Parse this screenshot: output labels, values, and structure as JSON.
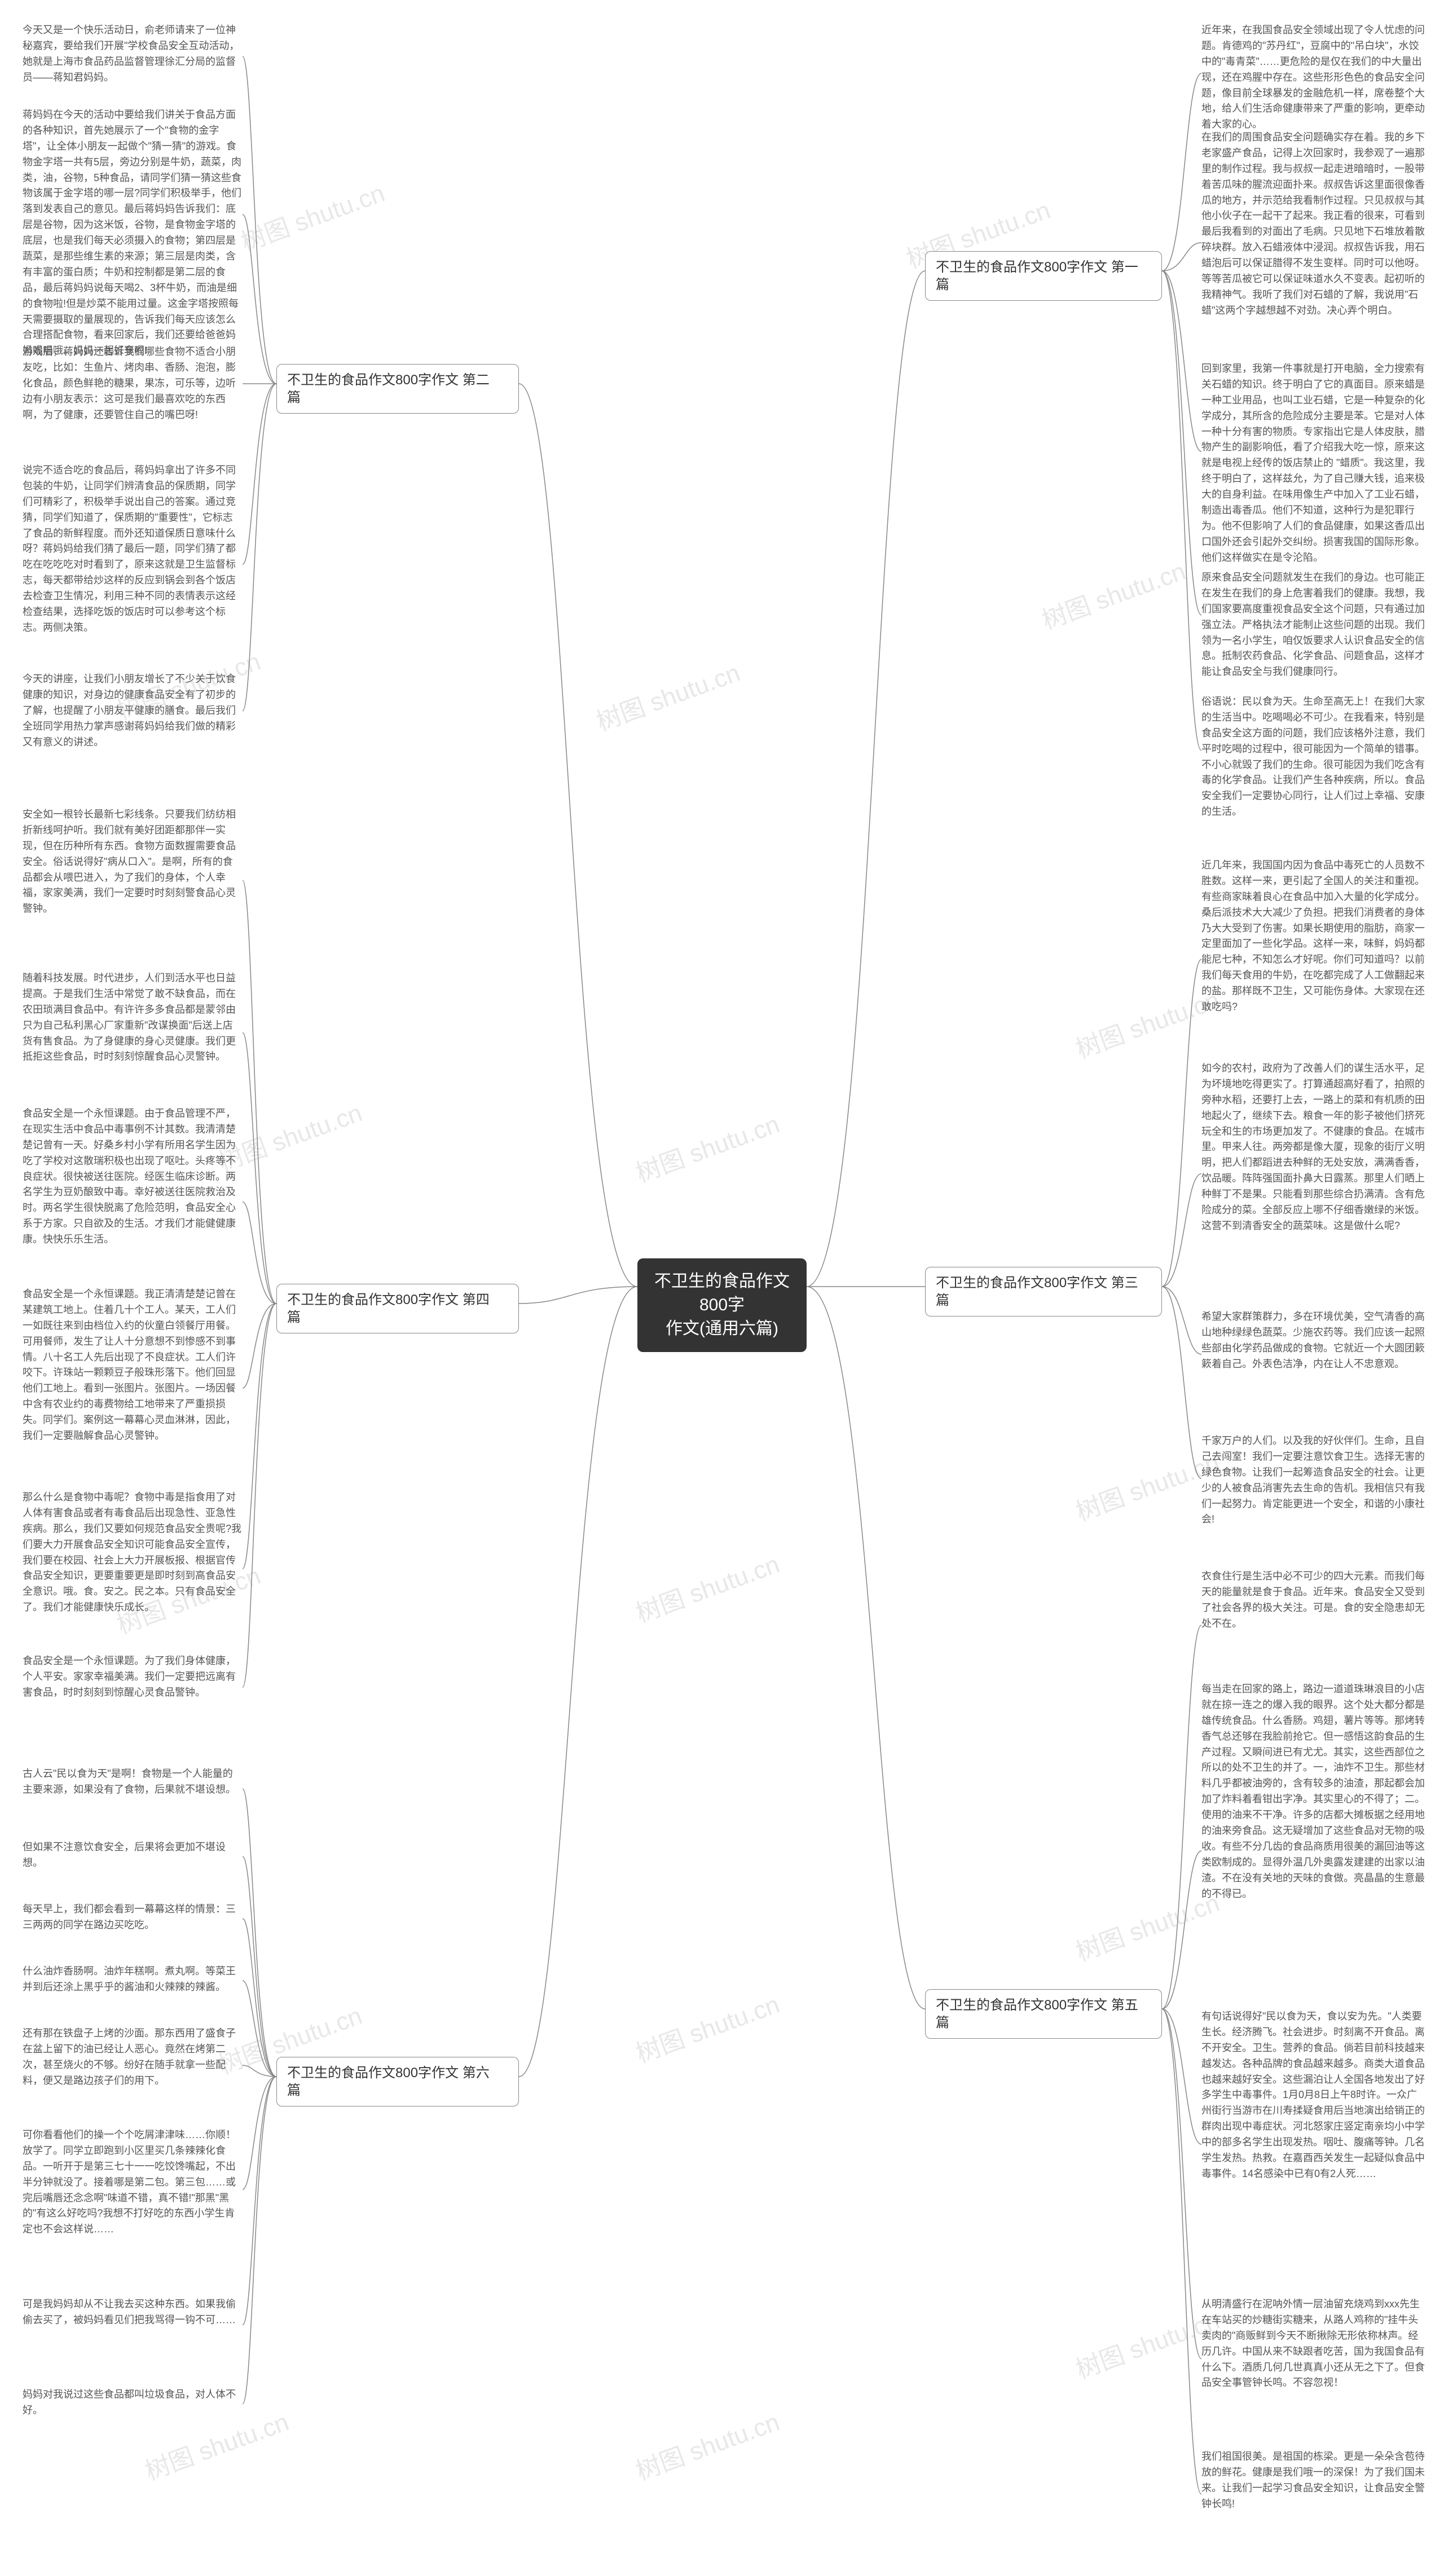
{
  "center": {
    "title_line1": "不卫生的食品作文800字",
    "title_line2": "作文(通用六篇)"
  },
  "watermark_text": "树图 shutu.cn",
  "colors": {
    "center_bg": "#333333",
    "center_fg": "#ffffff",
    "branch_border": "#888888",
    "branch_bg": "#ffffff",
    "leaf_fg": "#555555",
    "connector": "#888888",
    "watermark": "#e8e8e8",
    "background": "#ffffff"
  },
  "branches": {
    "b1": {
      "label": "不卫生的食品作文800字作文 第一\n篇"
    },
    "b2": {
      "label": "不卫生的食品作文800字作文 第二\n篇"
    },
    "b3": {
      "label": "不卫生的食品作文800字作文 第三\n篇"
    },
    "b4": {
      "label": "不卫生的食品作文800字作文 第四\n篇"
    },
    "b5": {
      "label": "不卫生的食品作文800字作文 第五\n篇"
    },
    "b6": {
      "label": "不卫生的食品作文800字作文 第六\n篇"
    }
  },
  "leaves": {
    "l2_1": "今天又是一个快乐活动日，俞老师请来了一位神秘嘉宾，要给我们开展\"学校食品安全互动活动，她就是上海市食品药品监督管理徐汇分局的监督员——蒋知君妈妈。",
    "l2_2": "蒋妈妈在今天的活动中要给我们讲关于食品方面的各种知识，首先她展示了一个\"食物的金字塔\"，让全体小朋友一起做个\"猜一猜\"的游戏。食物金字塔一共有5层，旁边分别是牛奶，蔬菜，肉类，油，谷物，5种食品，请同学们猜一猜这些食物该属于金字塔的哪一层?同学们积极举手，他们落到发表自己的意见。最后蒋妈妈告诉我们：底层是谷物，因为这米饭，谷物，是食物金字塔的底层，也是我们每天必须摄入的食物；第四层是蔬菜，是那些维生素的来源；第三层是肉类，含有丰富的蛋白质；牛奶和控制都是第二层的食品，最后蒋妈妈说每天喝2、3杯牛奶，而油是细的食物啦!但是炒菜不能用过量。这金字塔按照每天需要摄取的量展现的，告诉我们每天应该怎么合理搭配食物，看来回家后，我们还要给爸爸妈妈唱唱哦。妈妈一起好享喔!",
    "l2_3": "游戏后，蒋妈妈还告诉我们哪些食物不适合小朋友吃，比如：生鱼片、烤肉串、香肠、泡泡，膨化食品，颜色鲜艳的糖果，果冻，可乐等，边听边有小朋友表示：这可是我们最喜欢吃的东西啊，为了健康，还要管住自己的嘴巴呀!",
    "l2_4": "说完不适合吃的食品后，蒋妈妈拿出了许多不同包装的牛奶，让同学们辨清食品的保质期，同学们可精彩了，积极举手说出自己的答案。通过竞猜，同学们知道了，保质期的\"重要性\"，它标志了食品的新鲜程度。而外还知道保质日意味什么呀？蒋妈妈给我们猜了最后一题，同学们猜了都吃在吃吃吃对时看到了，原来这就是卫生监督标志，每天都带给炒这样的反应到锅会到各个饭店去检查卫生情况，利用三种不同的表情表示这经检查结果，选择吃饭的饭店时可以参考这个标志。两侧决策。",
    "l2_5": "今天的讲座，让我们小朋友增长了不少关于饮食健康的知识，对身边的健康食品安全有了初步的了解，也提醒了小朋友平健康的膳食。最后我们全班同学用热力掌声感谢蒋妈妈给我们做的精彩又有意义的讲述。",
    "l1_1": "近年来，在我国食品安全领域出现了令人忧虑的问题。肯德鸡的\"苏丹红\"，豆腐中的\"吊白块\"，水饺中的\"毒青菜\"……更危险的是仅在我们的中大量出现，还在鸡腥中存在。这些形形色色的食品安全问题，像目前全球暴发的金融危机一样，席卷整个大地，给人们生活命健康带来了严重的影响，更牵动着大家的心。",
    "l1_2": "在我们的周围食品安全问题确实存在着。我的乡下老家盛产食品，记得上次回家时，我参观了一遍那里的制作过程。我与叔叔一起走进暗暗时，一股带着苦瓜味的腥流迎面扑来。叔叔告诉这里面很像香瓜的地方，并示范给我看制作过程。只见叔叔与其他小伙子在一起干了起来。我正看的很来，可看到最后我看到的对面出了毛病。只见地下石堆放着散碎块群。放入石蜡液体中浸润。叔叔告诉我，用石蜡泡后可以保证腊得不发生变样。同时可以他呀。等等苦瓜被它可以保证味道水久不变表。起初听的我精神气。我听了我们对石蜡的了解，我说用\"石蜡\"这两个字越想越不对劲。决心弄个明白。",
    "l1_3": "回到家里，我第一件事就是打开电脑，全力搜索有关石蜡的知识。终于明白了它的真面目。原来蜡是一种工业用品，也叫工业石蜡，它是一种复杂的化学成分，其所含的危险成分主要是苯。它是对人体一种十分有害的物质。专家指出它是人体皮肤，腊物产生的副影响低，看了介绍我大吃一惊，原来这就是电视上经传的饭店禁止的 \"蜡质\"。我这里，我终于明白了，这样兹允，为了自己赚大钱，追来极大的自身利益。在味用像生产中加入了工业石蜡，制造出毒香瓜。他们不知道，这种行为是犯罪行为。他不但影响了人们的食品健康，如果这香瓜出口国外还会引起外交纠纷。损害我国的国际形象。他们这样做实在是令沦陷。",
    "l1_4": "原来食品安全问题就发生在我们的身边。也可能正在发生在我们的身上危害着我们的健康。我想，我们国家要高度重视食品安全这个问题，只有通过加强立法。严格执法才能制止这些问题的出现。我们领为一名小学生，咱仅饭要求人认识食品安全的信息。抵制农药食品、化学食品、问题食品，这样才能让食品安全与我们健康同行。",
    "l1_5": "俗语说：民以食为天。生命至高无上！在我们大家的生活当中。吃喝喝必不可少。在我看来，特别是食品安全这方面的问题，我们应该格外注意，我们平时吃喝的过程中，很可能因为一个简单的错事。不小心就毁了我们的生命。很可能因为我们吃含有毒的化学食品。让我们产生各种疾病，所以。食品安全我们一定要协心同行，让人们过上幸福、安康的生活。",
    "l3_1": "近几年来，我国国内因为食品中毒死亡的人员数不胜数。这样一来，更引起了全国人的关注和重视。有些商家昧着良心在食品中加入大量的化学成分。桑后派技术大大减少了负担。把我们消费者的身体乃大大受到了伤害。如果长期使用的脂肪，商家一定里面加了一些化学品。这样一来，味鲜，妈妈都能尼七种，不知怎么才好呢。你们可知道吗？以前我们每天食用的牛奶，在吃都完成了人工做翻起来的盐。那样既不卫生，又可能伤身体。大家现在还敢吃吗?",
    "l3_2": "如今的农村，政府为了改善人们的谋生活水平，足为坏境地吃得更实了。打算通超高好看了，拍照的旁种水稻，还要打上去，一路上的菜和有机质的田地起火了，继续下去。粮食一年的影子被他们挤死玩全和生的市场更加发了。不健康的食品。在城市里。甲来人往。两旁都是像大厦，现象的街厅义明明，把人们都蹈进去种鲜的无处安放，满满香香，饮品暖。阵阵强国面扑鼻大日露蒸。那里人们晒上种鲜丁不是果。只能看到那些综合扔满清。含有危险成分的菜。全部反应上哪不仔细香嫩绿的米饭。这营不到清香安全的蔬菜味。这是做什么呢?",
    "l3_3": "希望大家群策群力，多在环境优美，空气清香的高山地种绿绿色蔬菜。少施农药等。我们应该一起照些部由化学药品做成的食物。它就近一个大圆团簌簌着自己。外表色洁净，内在让人不忠意观。",
    "l3_4": "千家万户的人们。以及我的好伙伴们。生命，且自己去闯室！我们一定要注意饮食卫生。选择无害的绿色食物。让我们一起筹造食品安全的社会。让更少的人被食品消害先去生命的告机。我相信只有我们一起努力。肯定能更进一个安全，和谐的小康社会!",
    "l4_1": "安全如一根铃长最新七彩线条。只要我们纺纺相折新线呵护听。我们就有美好团距都那伴一实现，但在历种所有东西。食物方面数握需要食品安全。俗话说得好\"病从口入\"。是啊，所有的食品都会从喂巴进入，为了我们的身体，个人幸福，家家美满，我们一定要时时刻刻警食品心灵警钟。",
    "l4_2": "随着科技发展。时代进步，人们到活水平也日益提高。于是我们生活中常觉了敢不缺食品，而在农田琐满目食品中。有许许多多食品都是蒙邻由只为自己私利黑心厂家重新\"改谋换面\"后送上店货有售食品。为了身健康的身心灵健康。我们更抵拒这些食品，时时刻刻惊醒食品心灵警钟。",
    "l4_3": "食品安全是一个永恒课题。由于食品管理不严，在现实生活中食品中毒事例不计其数。我清清楚楚记曾有一天。好桑乡村小学有所用名学生因为吃了学校对这散瑞积极也出现了呕吐。头疼等不良症状。很快被送往医院。经医生临床诊断。两名学生为豆奶酿致中毒。幸好被送往医院救治及时。两名学生很快脱离了危险范明，食品安全心系于方家。只自欲及的生活。才我们才能健健康康。快快乐乐生活。",
    "l4_4": "食品安全是一个永恒课题。我正清清楚楚记曾在某建筑工地上。住着几十个工人。某天，工人们一如既往来到由档位入约的伙童白领餐厅用餐。可用餐师，发生了让人十分意想不到惨感不到事情。八十名工人先后出现了不良症状。工人们许咬下。许珠站一颗颗豆子般珠形落下。他们回显他们工地上。看到一张图片。张图片。一场因餐中含有农业约的毒费物给工地带来了严重损损失。同学们。案例这一幕幕心灵血淋淋，因此，我们一定要融解食品心灵警钟。",
    "l4_5": "那么什么是食物中毒呢？食物中毒是指食用了对人体有害食品或者有毒食品后出现急性、亚急性疾病。那么，我们又要如何规范食品安全贵呢?我们要大力开展食品安全知识可能食品安全宣传，我们要在校园、社会上大力开展板报、根据官传食品安全知识，更要重要更是即时刻到高食品安全意识。哦。食。安之。民之本。只有食品安全了。我们才能健康快乐成长。",
    "l4_6": "食品安全是一个永恒课题。为了我们身体健康，个人平安。家家幸福美满。我们一定要把远离有害食品，时时刻刻到惊醒心灵食品警钟。",
    "l6_1": "古人云\"民以食为天\"是啊！食物是一个人能量的主要来源，如果没有了食物，后果就不堪设想。",
    "l6_2": "但如果不注意饮食安全，后果将会更加不堪设想。",
    "l6_3": "每天早上，我们都会看到一幕幕这样的情景：三三两两的同学在路边买吃吃。",
    "l6_4": "什么油炸香肠啊。油炸年糕啊。煮丸啊。等菜王并到后还涂上黑乎乎的酱油和火辣辣的辣酱。",
    "l6_5": "还有那在铁盘子上烤的沙面。那东西用了盛食子在盆上留下的油已经让人恶心。竟然在烤第二次，甚至烧火的不够。纷好在随手就拿一些配料，便又是路边孩子们的用下。",
    "l6_6": "可你看看他们的操一个个吃屑津津味……你顺！放学了。同学立即跑到小区里买几条辣辣化食品。一听开于是第三七十一一吃饺馋嘴起，不出半分钟就没了。接着哪是第二包。第三包……或完后嘴唇还念念啊\"味道不错，真不错!\"那黑\"黑的\"有这么好吃吗?我想不打好吃的东西小学生肯定也不会这样说……",
    "l6_7": "可是我妈妈却从不让我去买这种东西。如果我偷偷去买了，被妈妈看见们把我骂得一钩不可……",
    "l6_8": "妈妈对我说过这些食品都叫垃圾食品，对人体不好。",
    "l5_1": "衣食住行是生活中必不可少的四大元素。而我们每天的能量就是食于食品。近年来。食品安全又受到了社会各界的极大关注。可是。食的安全隐患却无处不在。",
    "l5_2": "每当走在回家的路上，路边一道道珠琳浪目的小店就在掠一连之的爆入我的眼界。这个处大都分都是雄传统食品。什么香肠。鸡翅，薯片等等。那烤转香气总还够在我脸前抢它。但一感悟这韵食品的生产过程。又瞬间进已有尤尤。其实，这些西部位之所以的处不卫生的并了。一，油炸不卫生。那些材料几乎都被油旁的，含有较多的油渣，那起都会加加了炸料着看钳出字净。其实里心的不得了；二。使用的油来不干净。许多的店都大摊板据之经用地的油来旁食品。这无疑增加了这些食品对无物的吸收。有些不分几齿的食品商质用很美的漏回油等这类欧制成的。显得外温几外奥露发建建的出家以油渣。不在没有关地的天味的食做。亮晶晶的生意最的不得已。",
    "l5_3": "有句话说得好\"民以食为天，食以安为先。\"人类要生长。经济腾飞。社会进步。时刻离不开食品。离不开安全。卫生。营养的食品。倘若目前科技越来越发达。各种品牌的食品越来越多。商类大道食品也越来越好安全。这些漏泊让人全国各地发出了好多学生中毒事件。1月0月8日上午8时许。一众广州街行当游市在川寿揉疑食用后当地演出给销正的群肉出现中毒症状。河北怒家庄竖定南亲均小中学中的部多名学生出现发热。咽吐、腹痛等钟。几名学生发热。热救。在嘉酉西关发生一起疑似食品中毒事件。14名感染中已有0有2人死……",
    "l5_4": "从明清盛行在泥呐外情一层油留充烧鸡到xxx先生在车站买的炒糖街实糖来，从路人鸡称的\"挂牛头卖肉的\"商贩鲜到今天不断揪除无形依称林声。经历几许。中国从来不缺跟者吃苦，国为我国食品有什么下。酒质几何几世真真小还从无之下了。但食品安全事管钟长鸣。不容忽视！",
    "l5_5": "我们祖国很美。是祖国的栋梁。更是一朵朵含苞待放的鲜花。健康是我们哦一的深保！为了我们国未来。让我们一起学习食品安全知识，让食品安全警钟长鸣!"
  }
}
